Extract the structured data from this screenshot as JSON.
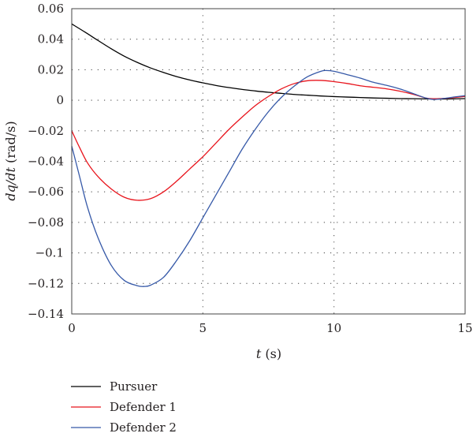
{
  "chart_data": {
    "type": "line",
    "xlabel": {
      "var": "t",
      "unit": " (s)"
    },
    "ylabel": {
      "var": "dq/dt",
      "unit": " (rad/s)"
    },
    "xlim": [
      0,
      15
    ],
    "ylim": [
      -0.14,
      0.06
    ],
    "xticks": [
      0,
      5,
      10,
      15
    ],
    "yticks": [
      0.06,
      0.04,
      0.02,
      0,
      -0.02,
      -0.04,
      -0.06,
      -0.08,
      -0.1,
      -0.12,
      -0.14
    ],
    "ytick_labels": [
      "0.06",
      "0.04",
      "0.02",
      "0",
      "−0.02",
      "−0.04",
      "−0.06",
      "−0.08",
      "−0.1",
      "−0.12",
      "−0.14"
    ],
    "grid": true,
    "legend_position": "below",
    "series": [
      {
        "name": "Pursuer",
        "color": "#000000",
        "x": [
          0,
          0.5,
          1,
          1.5,
          2,
          2.5,
          3,
          3.5,
          4,
          4.5,
          5,
          5.5,
          6,
          6.5,
          7,
          7.5,
          8,
          8.5,
          9,
          9.5,
          10,
          10.5,
          11,
          11.5,
          12,
          12.5,
          13,
          13.5,
          14,
          14.5,
          15
        ],
        "y": [
          0.05,
          0.0447,
          0.0392,
          0.0338,
          0.0289,
          0.0248,
          0.0212,
          0.0182,
          0.0155,
          0.0133,
          0.0114,
          0.0097,
          0.0083,
          0.0071,
          0.0061,
          0.0052,
          0.0045,
          0.0038,
          0.0033,
          0.0028,
          0.0024,
          0.0021,
          0.0018,
          0.0015,
          0.0013,
          0.0011,
          0.001,
          0.0009,
          0.0008,
          0.0009,
          0.0011
        ]
      },
      {
        "name": "Defender 1",
        "color": "#e8141c",
        "x": [
          0,
          0.3,
          0.6,
          1,
          1.5,
          2,
          2.5,
          3,
          3.5,
          4,
          4.5,
          5,
          5.5,
          6,
          6.5,
          7,
          7.5,
          8,
          8.5,
          9,
          9.5,
          10,
          10.5,
          11,
          11.5,
          12,
          12.5,
          13,
          13.5,
          13.8,
          14.2,
          14.6,
          15
        ],
        "y": [
          -0.02,
          -0.031,
          -0.041,
          -0.05,
          -0.058,
          -0.0635,
          -0.0655,
          -0.0645,
          -0.06,
          -0.053,
          -0.045,
          -0.037,
          -0.028,
          -0.019,
          -0.011,
          -0.0035,
          0.0025,
          0.0075,
          0.011,
          0.0128,
          0.013,
          0.0122,
          0.011,
          0.0095,
          0.0085,
          0.0075,
          0.006,
          0.004,
          0.0015,
          0.001,
          0.0012,
          0.0018,
          0.0025
        ]
      },
      {
        "name": "Defender 2",
        "color": "#3659a8",
        "x": [
          0,
          0.3,
          0.6,
          1,
          1.5,
          2,
          2.5,
          2.75,
          3,
          3.5,
          4,
          4.5,
          5,
          5.5,
          6,
          6.5,
          7,
          7.5,
          8,
          8.5,
          9,
          9.5,
          9.7,
          10,
          10.5,
          11,
          11.5,
          12,
          12.5,
          13,
          13.5,
          13.8,
          14.2,
          14.6,
          15
        ],
        "y": [
          -0.03,
          -0.05,
          -0.07,
          -0.09,
          -0.108,
          -0.118,
          -0.1215,
          -0.122,
          -0.1212,
          -0.116,
          -0.105,
          -0.092,
          -0.077,
          -0.062,
          -0.047,
          -0.032,
          -0.019,
          -0.0075,
          0.002,
          0.0095,
          0.0155,
          0.019,
          0.0195,
          0.019,
          0.0168,
          0.0145,
          0.0118,
          0.0098,
          0.0075,
          0.0045,
          0.0015,
          0.0005,
          0.0012,
          0.0022,
          0.003
        ]
      }
    ]
  }
}
